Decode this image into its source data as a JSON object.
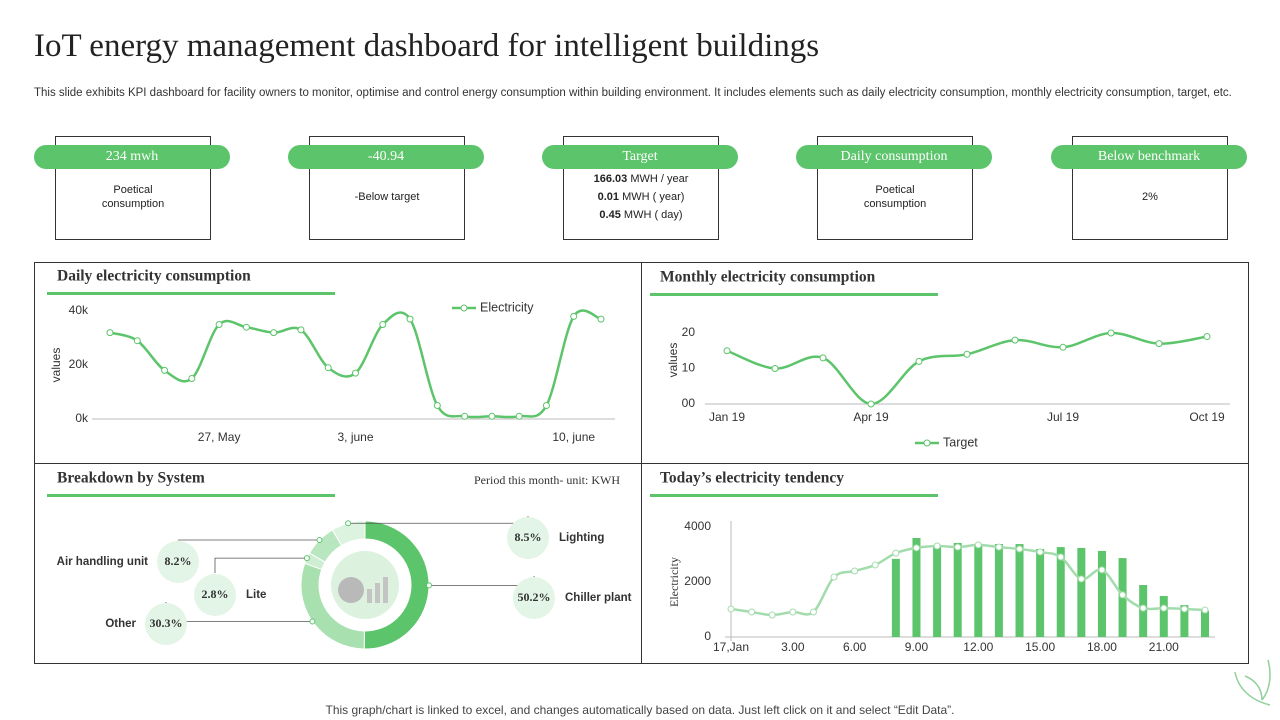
{
  "title": "IoT energy management dashboard for intelligent buildings",
  "subtitle": "This slide exhibits KPI dashboard for facility owners to monitor, optimise and control energy consumption within building environment. It includes elements such as daily electricity consumption, monthly electricity consumption, target, etc.",
  "kpis": [
    {
      "label": "234 mwh",
      "text": "Poetical consumption"
    },
    {
      "label": "-40.94",
      "text": "-Below target"
    },
    {
      "label": "Target",
      "lines": [
        {
          "value": "166.03",
          "unit": "MWH / year"
        },
        {
          "value": "0.01",
          "unit": "MWH ( year)"
        },
        {
          "value": "0.45",
          "unit": "MWH ( day)"
        }
      ]
    },
    {
      "label": "Daily consumption",
      "text": "Poetical consumption"
    },
    {
      "label": "Below benchmark",
      "text": "2%"
    }
  ],
  "chart_data": [
    {
      "type": "line",
      "title": "Daily electricity consumption",
      "ylabel": "values",
      "categories": [
        null,
        null,
        null,
        null,
        "27, May",
        null,
        null,
        null,
        null,
        "3, june",
        null,
        null,
        null,
        null,
        null,
        null,
        null,
        "10, june",
        null
      ],
      "series": [
        {
          "name": "Electricity",
          "color": "#5cc46a",
          "values": [
            32000,
            29000,
            18000,
            15000,
            35000,
            34000,
            32000,
            33000,
            19000,
            17000,
            35000,
            37000,
            5000,
            1000,
            1000,
            1000,
            5000,
            38000,
            37000
          ]
        }
      ],
      "ylim": [
        0,
        40000
      ],
      "yticks": [
        {
          "value": 0,
          "label": "0k"
        },
        {
          "value": 20000,
          "label": "20k"
        },
        {
          "value": 40000,
          "label": "40k"
        }
      ],
      "grid": false,
      "legend": "top"
    },
    {
      "type": "line",
      "title": "Monthly electricity consumption",
      "ylabel": "values",
      "categories": [
        "Jan 19",
        null,
        null,
        "Apr 19",
        null,
        null,
        null,
        "Jul 19",
        null,
        null,
        "Oct 19"
      ],
      "series": [
        {
          "name": "Target",
          "color": "#5cc46a",
          "values": [
            15,
            10,
            13,
            0,
            12,
            14,
            18,
            16,
            20,
            17,
            19
          ]
        }
      ],
      "ylim": [
        0,
        20
      ],
      "yticks": [
        {
          "value": 0,
          "label": "00"
        },
        10,
        20
      ],
      "grid": false,
      "legend": "bottom"
    },
    {
      "type": "donut",
      "title": "Breakdown by System",
      "subtitle": "Period this month- unit: KWH",
      "categories": [
        "Chiller plant",
        "Other",
        "Lite",
        "Air handling unit",
        "Lighting"
      ],
      "values": [
        50.2,
        30.3,
        2.8,
        8.2,
        8.5
      ],
      "value_labels": [
        "50.2%",
        "30.3%",
        "2.8%",
        "8.2%",
        "8.5%"
      ],
      "colors": [
        "#5cc46a",
        "#a8e0b0",
        "#cdeed2",
        "#b8e7bf",
        "#dcf3df"
      ]
    },
    {
      "type": "combo",
      "title": "Today’s electricity tendency",
      "ylabel": "Electricity",
      "categories": [
        "17,Jan",
        null,
        null,
        "3.00",
        null,
        null,
        "6.00",
        null,
        null,
        "9.00",
        null,
        null,
        "12.00",
        null,
        null,
        "15.00",
        null,
        null,
        "18.00",
        null,
        null,
        "21.00",
        null,
        null
      ],
      "series": [
        {
          "type": "bar",
          "color": "#5cc46a",
          "values": [
            null,
            null,
            null,
            null,
            null,
            null,
            null,
            null,
            2840,
            3600,
            3350,
            3420,
            3380,
            3380,
            3380,
            3200,
            3270,
            3240,
            3130,
            2870,
            1890,
            1490,
            1160,
            950
          ]
        },
        {
          "type": "line",
          "color": "#a3dcac",
          "values": [
            1020,
            910,
            800,
            910,
            910,
            2180,
            2400,
            2620,
            3050,
            3240,
            3310,
            3270,
            3350,
            3270,
            3200,
            3090,
            2910,
            2110,
            2440,
            1530,
            1050,
            1050,
            1020,
            980
          ]
        }
      ],
      "ylim": [
        0,
        4000
      ],
      "yticks": [
        0,
        2000,
        4000
      ],
      "grid": false
    }
  ],
  "footer": "This graph/chart is linked to excel,  and changes automatically based on data. Just left click on it and select “Edit Data”."
}
